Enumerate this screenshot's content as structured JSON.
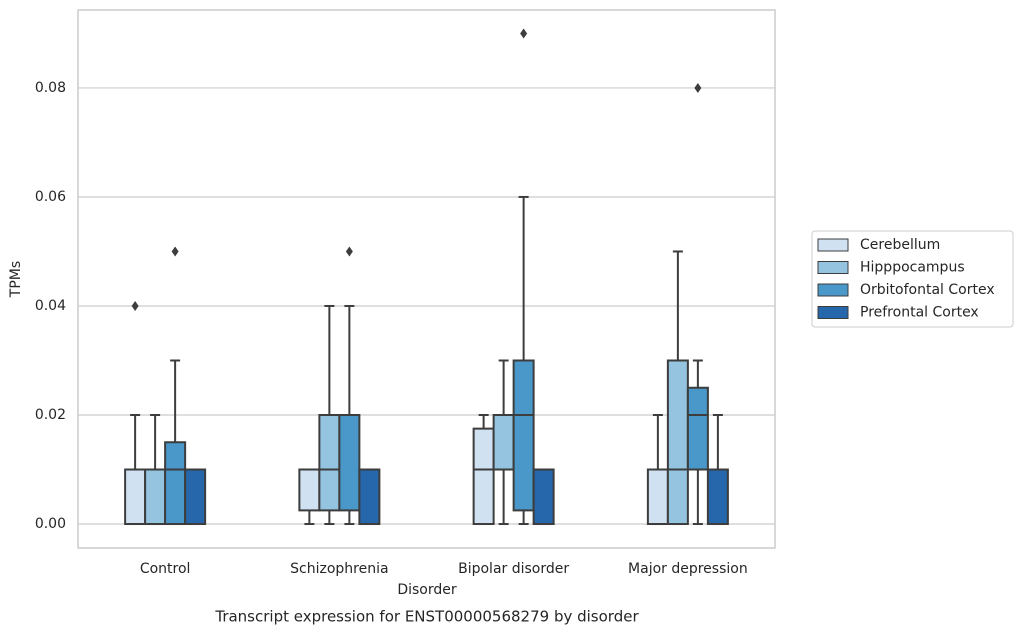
{
  "chart_data": {
    "type": "box",
    "title": "Transcript expression for ENST00000568279 by disorder",
    "x_label": "Disorder",
    "y_label": "TPMs",
    "categories": [
      "Control",
      "Schizophrenia",
      "Bipolar disorder",
      "Major depression"
    ],
    "ylim": [
      -0.0044,
      0.0943
    ],
    "yticks": [
      {
        "value": 0,
        "label": "0.00"
      },
      {
        "value": 0.02,
        "label": "0.02"
      },
      {
        "value": 0.04,
        "label": "0.04"
      },
      {
        "value": 0.06,
        "label": "0.06"
      },
      {
        "value": 0.08,
        "label": "0.08"
      }
    ],
    "grid": true,
    "legend": "right",
    "series": [
      {
        "name": "Cerebellum",
        "color": "#d0e1f2",
        "boxes": [
          {
            "whislo": 0,
            "q1": 0,
            "med": 0,
            "q3": 0.01,
            "whishi": 0.02,
            "fliers": [
              0.04
            ]
          },
          {
            "whislo": 0,
            "q1": 0.0025,
            "med": 0.01,
            "q3": 0.01,
            "whishi": 0.01,
            "fliers": []
          },
          {
            "whislo": 0,
            "q1": 0,
            "med": 0.01,
            "q3": 0.0175,
            "whishi": 0.02,
            "fliers": []
          },
          {
            "whislo": 0,
            "q1": 0,
            "med": 0,
            "q3": 0.01,
            "whishi": 0.02,
            "fliers": []
          }
        ]
      },
      {
        "name": "Hipppocampus",
        "color": "#94c4df",
        "boxes": [
          {
            "whislo": 0,
            "q1": 0,
            "med": 0,
            "q3": 0.01,
            "whishi": 0.02,
            "fliers": []
          },
          {
            "whislo": 0,
            "q1": 0.0025,
            "med": 0.01,
            "q3": 0.02,
            "whishi": 0.04,
            "fliers": []
          },
          {
            "whislo": 0,
            "q1": 0.01,
            "med": 0.01,
            "q3": 0.02,
            "whishi": 0.03,
            "fliers": []
          },
          {
            "whislo": 0,
            "q1": 0,
            "med": 0.01,
            "q3": 0.03,
            "whishi": 0.05,
            "fliers": []
          }
        ]
      },
      {
        "name": "Orbitofontal Cortex",
        "color": "#4a98c9",
        "boxes": [
          {
            "whislo": 0,
            "q1": 0,
            "med": 0.01,
            "q3": 0.015,
            "whishi": 0.03,
            "fliers": [
              0.05
            ]
          },
          {
            "whislo": 0,
            "q1": 0.0025,
            "med": 0.02,
            "q3": 0.02,
            "whishi": 0.04,
            "fliers": [
              0.05
            ]
          },
          {
            "whislo": 0,
            "q1": 0.0025,
            "med": 0.02,
            "q3": 0.03,
            "whishi": 0.06,
            "fliers": [
              0.09
            ]
          },
          {
            "whislo": 0,
            "q1": 0.01,
            "med": 0.02,
            "q3": 0.025,
            "whishi": 0.03,
            "fliers": [
              0.08
            ]
          }
        ]
      },
      {
        "name": "Prefrontal Cortex",
        "color": "#2666aa",
        "boxes": [
          {
            "whislo": 0,
            "q1": 0,
            "med": 0,
            "q3": 0.01,
            "whishi": 0.01,
            "fliers": []
          },
          {
            "whislo": 0,
            "q1": 0,
            "med": 0,
            "q3": 0.01,
            "whishi": 0.01,
            "fliers": []
          },
          {
            "whislo": 0,
            "q1": 0,
            "med": 0,
            "q3": 0.01,
            "whishi": 0.01,
            "fliers": []
          },
          {
            "whislo": 0,
            "q1": 0,
            "med": 0,
            "q3": 0.01,
            "whishi": 0.02,
            "fliers": []
          }
        ]
      }
    ]
  }
}
